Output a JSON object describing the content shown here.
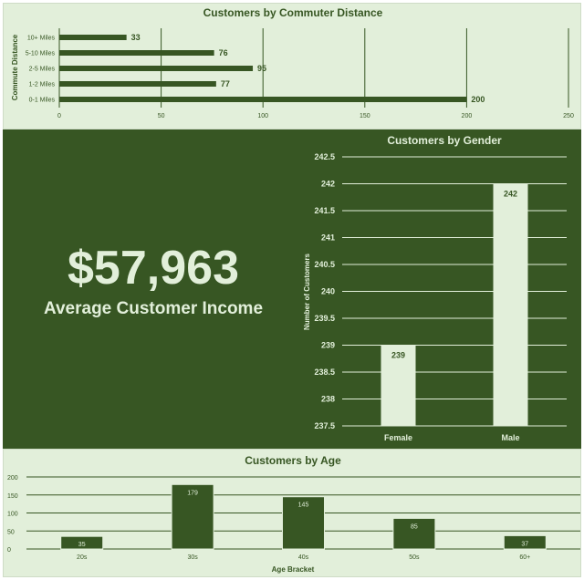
{
  "colors": {
    "dark_green": "#375623",
    "light_green": "#e2efda"
  },
  "kpi": {
    "value": "$57,963",
    "label": "Average Customer Income"
  },
  "chart_data": [
    {
      "id": "commute",
      "type": "bar",
      "orientation": "horizontal",
      "title": "Customers by Commuter Distance",
      "xlabel": "",
      "ylabel": "Commute Distance",
      "categories": [
        "10+ Miles",
        "5-10 Miles",
        "2-5 Miles",
        "1-2 Miles",
        "0-1 Miles"
      ],
      "values": [
        33,
        76,
        95,
        77,
        200
      ],
      "xlim": [
        0,
        250
      ],
      "xticks": [
        "0",
        "50",
        "100",
        "150",
        "200",
        "250"
      ],
      "grid": "vertical",
      "data_labels": true
    },
    {
      "id": "gender",
      "type": "bar",
      "title": "Customers by Gender",
      "xlabel": "",
      "ylabel": "Number of Customers",
      "categories": [
        "Female",
        "Male"
      ],
      "values": [
        239,
        242
      ],
      "ylim": [
        237.5,
        242.5
      ],
      "yticks": [
        "237.5",
        "238",
        "238.5",
        "239",
        "239.5",
        "240",
        "240.5",
        "241",
        "241.5",
        "242",
        "242.5"
      ],
      "grid": "horizontal",
      "data_labels": true
    },
    {
      "id": "age",
      "type": "bar",
      "title": "Customers by Age",
      "xlabel": "Age Bracket",
      "ylabel": "",
      "categories": [
        "20s",
        "30s",
        "40s",
        "50s",
        "60+"
      ],
      "values": [
        35,
        179,
        145,
        85,
        37
      ],
      "ylim": [
        0,
        200
      ],
      "yticks": [
        "0",
        "50",
        "100",
        "150",
        "200"
      ],
      "grid": "horizontal",
      "data_labels": true
    }
  ]
}
